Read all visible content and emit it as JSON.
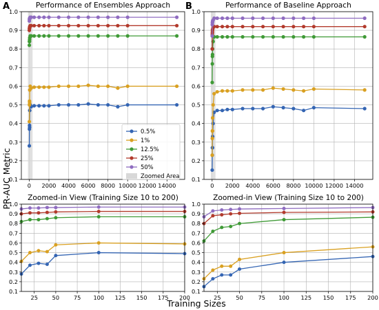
{
  "figure": {
    "ylabel": "PR-AUC Metric",
    "xlabel": "Training Sizes"
  },
  "legend": {
    "entries": [
      "0.5%",
      "1%",
      "12.5%",
      "25%",
      "50%"
    ],
    "zoom_label": "Zoomed Area",
    "placement": "inside top panel A, lower right"
  },
  "colors": {
    "0.5%": "#3465b3",
    "1%": "#d9a021",
    "12.5%": "#3f9a36",
    "25%": "#b23a2c",
    "50%": "#8f6cc0",
    "zoom_fill": "#d8d8d8"
  },
  "chart_data": [
    {
      "id": "A",
      "letter": "A",
      "type": "line",
      "title": "Performance of Ensembles Approach",
      "xlim": [
        -800,
        15800
      ],
      "ylim": [
        0.1,
        1.0
      ],
      "xticks": [
        0,
        2000,
        4000,
        6000,
        8000,
        10000,
        12000,
        14000
      ],
      "yticks": [
        0.1,
        0.2,
        0.3,
        0.4,
        0.5,
        0.6,
        0.7,
        0.8,
        0.9,
        1.0
      ],
      "grid": true,
      "zoom_band": [
        10,
        200
      ],
      "x": [
        10,
        20,
        30,
        40,
        50,
        100,
        200,
        500,
        1000,
        1500,
        2000,
        3000,
        4000,
        5000,
        6000,
        7000,
        8000,
        9000,
        10000,
        15000
      ],
      "series": [
        {
          "name": "0.5%",
          "values": [
            0.28,
            0.37,
            0.39,
            0.38,
            0.47,
            0.5,
            0.49,
            0.495,
            0.495,
            0.495,
            0.495,
            0.5,
            0.5,
            0.5,
            0.505,
            0.5,
            0.5,
            0.49,
            0.5,
            0.5
          ]
        },
        {
          "name": "1%",
          "values": [
            0.41,
            0.5,
            0.52,
            0.51,
            0.58,
            0.6,
            0.59,
            0.595,
            0.595,
            0.595,
            0.595,
            0.6,
            0.6,
            0.6,
            0.605,
            0.6,
            0.6,
            0.59,
            0.6,
            0.6
          ]
        },
        {
          "name": "12.5%",
          "values": [
            0.82,
            0.84,
            0.84,
            0.85,
            0.86,
            0.87,
            0.87,
            0.87,
            0.87,
            0.87,
            0.87,
            0.87,
            0.87,
            0.87,
            0.87,
            0.87,
            0.87,
            0.87,
            0.87,
            0.87
          ]
        },
        {
          "name": "25%",
          "values": [
            0.9,
            0.91,
            0.91,
            0.915,
            0.92,
            0.925,
            0.925,
            0.925,
            0.925,
            0.925,
            0.925,
            0.925,
            0.925,
            0.925,
            0.925,
            0.925,
            0.925,
            0.925,
            0.925,
            0.925
          ]
        },
        {
          "name": "50%",
          "values": [
            0.95,
            0.96,
            0.96,
            0.965,
            0.965,
            0.97,
            0.97,
            0.97,
            0.97,
            0.97,
            0.97,
            0.97,
            0.97,
            0.97,
            0.97,
            0.97,
            0.97,
            0.97,
            0.97,
            0.97
          ]
        }
      ]
    },
    {
      "id": "B",
      "letter": "B",
      "type": "line",
      "title": "Performance of Baseline Approach",
      "xlim": [
        -800,
        15800
      ],
      "ylim": [
        0.1,
        1.0
      ],
      "xticks": [
        0,
        2000,
        4000,
        6000,
        8000,
        10000,
        12000,
        14000
      ],
      "yticks": [
        0.1,
        0.2,
        0.3,
        0.4,
        0.5,
        0.6,
        0.7,
        0.8,
        0.9,
        1.0
      ],
      "grid": true,
      "zoom_band": [
        10,
        200
      ],
      "x": [
        10,
        20,
        30,
        40,
        50,
        100,
        200,
        500,
        1000,
        1500,
        2000,
        3000,
        4000,
        5000,
        6000,
        7000,
        8000,
        9000,
        10000,
        15000
      ],
      "series": [
        {
          "name": "0.5%",
          "values": [
            0.15,
            0.23,
            0.27,
            0.27,
            0.33,
            0.4,
            0.46,
            0.47,
            0.47,
            0.475,
            0.475,
            0.48,
            0.48,
            0.48,
            0.49,
            0.485,
            0.48,
            0.47,
            0.485,
            0.48
          ]
        },
        {
          "name": "1%",
          "values": [
            0.23,
            0.32,
            0.36,
            0.36,
            0.43,
            0.5,
            0.56,
            0.57,
            0.575,
            0.575,
            0.575,
            0.58,
            0.58,
            0.58,
            0.59,
            0.585,
            0.58,
            0.575,
            0.585,
            0.58
          ]
        },
        {
          "name": "12.5%",
          "values": [
            0.62,
            0.72,
            0.76,
            0.77,
            0.8,
            0.84,
            0.865,
            0.865,
            0.865,
            0.865,
            0.865,
            0.865,
            0.865,
            0.865,
            0.865,
            0.865,
            0.865,
            0.865,
            0.865,
            0.865
          ]
        },
        {
          "name": "25%",
          "values": [
            0.8,
            0.88,
            0.89,
            0.9,
            0.905,
            0.915,
            0.92,
            0.92,
            0.92,
            0.92,
            0.92,
            0.92,
            0.92,
            0.92,
            0.92,
            0.92,
            0.92,
            0.92,
            0.92,
            0.92
          ]
        },
        {
          "name": "50%",
          "values": [
            0.87,
            0.93,
            0.94,
            0.945,
            0.95,
            0.955,
            0.965,
            0.965,
            0.965,
            0.965,
            0.965,
            0.965,
            0.965,
            0.965,
            0.965,
            0.965,
            0.965,
            0.965,
            0.965,
            0.965
          ]
        }
      ]
    },
    {
      "id": "C",
      "type": "line",
      "title": "Zoomed-in View (Training Size 10 to 200)",
      "xlim": [
        10,
        200
      ],
      "ylim": [
        0.1,
        1.0
      ],
      "xticks": [
        25,
        50,
        75,
        100,
        125,
        150,
        175,
        200
      ],
      "yticks": [
        0.1,
        0.2,
        0.3,
        0.4,
        0.5,
        0.6,
        0.7,
        0.8,
        0.9,
        1.0
      ],
      "grid": true,
      "x": [
        10,
        20,
        30,
        40,
        50,
        100,
        200
      ],
      "series": [
        {
          "name": "0.5%",
          "values": [
            0.28,
            0.37,
            0.39,
            0.38,
            0.47,
            0.5,
            0.49
          ]
        },
        {
          "name": "1%",
          "values": [
            0.41,
            0.5,
            0.52,
            0.51,
            0.58,
            0.6,
            0.59
          ]
        },
        {
          "name": "12.5%",
          "values": [
            0.82,
            0.84,
            0.84,
            0.85,
            0.86,
            0.87,
            0.87
          ]
        },
        {
          "name": "25%",
          "values": [
            0.9,
            0.91,
            0.91,
            0.915,
            0.92,
            0.925,
            0.925
          ]
        },
        {
          "name": "50%",
          "values": [
            0.95,
            0.96,
            0.96,
            0.965,
            0.965,
            0.97,
            0.97
          ]
        }
      ]
    },
    {
      "id": "D",
      "type": "line",
      "title": "Zoomed-in View (Training Size 10 to 200)",
      "xlim": [
        10,
        200
      ],
      "ylim": [
        0.1,
        1.0
      ],
      "xticks": [
        25,
        50,
        75,
        100,
        125,
        150,
        175,
        200
      ],
      "yticks": [
        0.1,
        0.2,
        0.3,
        0.4,
        0.5,
        0.6,
        0.7,
        0.8,
        0.9,
        1.0
      ],
      "grid": true,
      "x": [
        10,
        20,
        30,
        40,
        50,
        100,
        200
      ],
      "series": [
        {
          "name": "0.5%",
          "values": [
            0.15,
            0.23,
            0.27,
            0.27,
            0.33,
            0.4,
            0.46
          ]
        },
        {
          "name": "1%",
          "values": [
            0.23,
            0.32,
            0.36,
            0.36,
            0.43,
            0.5,
            0.56
          ]
        },
        {
          "name": "12.5%",
          "values": [
            0.62,
            0.72,
            0.76,
            0.77,
            0.8,
            0.84,
            0.865
          ]
        },
        {
          "name": "25%",
          "values": [
            0.8,
            0.88,
            0.89,
            0.9,
            0.905,
            0.915,
            0.92
          ]
        },
        {
          "name": "50%",
          "values": [
            0.87,
            0.93,
            0.94,
            0.945,
            0.95,
            0.955,
            0.965
          ]
        }
      ]
    }
  ]
}
